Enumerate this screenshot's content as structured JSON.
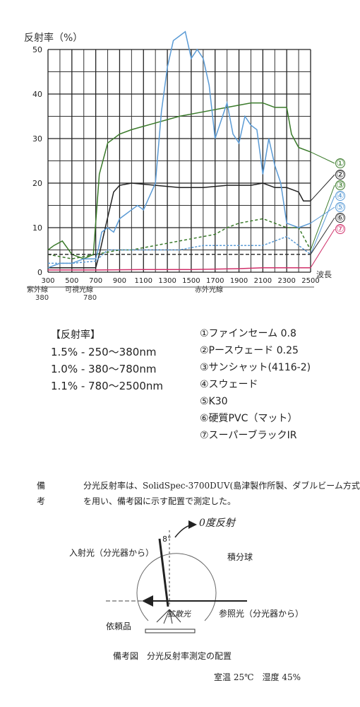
{
  "chart_data": {
    "type": "line",
    "ylabel": "反射率（%）",
    "xlabel": "波長",
    "xlim": [
      300,
      2500
    ],
    "ylim": [
      0,
      50
    ],
    "x_ticks": [
      "300",
      "500",
      "700",
      "900",
      "1100",
      "1300",
      "1500",
      "1700",
      "1900",
      "2100",
      "2300",
      "2500"
    ],
    "y_ticks": [
      "0",
      "10",
      "20",
      "30",
      "40",
      "50"
    ],
    "region_labels": {
      "uv": "紫外線",
      "visible": "可視光線",
      "ir": "赤外光線",
      "b1": "380",
      "b2": "780"
    },
    "series": [
      {
        "name": "①",
        "color": "#3a7a2a",
        "x": [
          300,
          350,
          420,
          500,
          600,
          680,
          730,
          800,
          900,
          1000,
          1200,
          1400,
          1600,
          1800,
          2000,
          2100,
          2200,
          2300,
          2340,
          2400,
          2500
        ],
        "y": [
          5,
          6,
          7,
          4,
          3,
          4,
          22,
          29,
          31,
          32,
          33.5,
          35,
          36,
          37,
          38,
          38,
          37,
          37,
          31,
          28,
          27
        ]
      },
      {
        "name": "②",
        "color": "#222222",
        "x": [
          300,
          400,
          500,
          600,
          700,
          730,
          780,
          850,
          900,
          1000,
          1200,
          1400,
          1600,
          1800,
          2000,
          2100,
          2200,
          2300,
          2400,
          2440,
          2500
        ],
        "y": [
          1,
          1,
          1,
          1,
          1,
          4,
          10,
          18,
          19.5,
          20,
          19.5,
          19,
          19,
          19.5,
          19.5,
          20,
          19,
          19,
          18,
          16,
          16
        ]
      },
      {
        "name": "③",
        "color": "#3a7a2a",
        "x": [
          300,
          500,
          700,
          800,
          900,
          1000,
          1100,
          1200,
          1300,
          1400,
          1500,
          1600,
          1700,
          1800,
          1900,
          2000,
          2100,
          2200,
          2300,
          2400,
          2500
        ],
        "y": [
          4,
          3,
          4,
          4.5,
          5,
          5,
          5.5,
          6,
          6.5,
          7,
          7.5,
          8,
          8.5,
          10,
          11,
          11.5,
          12,
          11,
          10,
          10,
          5
        ]
      },
      {
        "name": "④",
        "color": "#5b9bd5",
        "x": [
          300,
          500,
          700,
          800,
          900,
          1000,
          1100,
          1200,
          1300,
          1400,
          1500,
          1600,
          1700,
          1800,
          1900,
          2000,
          2100,
          2200,
          2300,
          2400,
          2500
        ],
        "y": [
          2,
          2,
          2.5,
          5,
          5,
          5,
          5,
          5,
          5,
          5,
          5.5,
          6,
          6,
          6,
          6,
          6,
          6,
          7,
          8,
          6,
          4
        ]
      },
      {
        "name": "⑤",
        "color": "#5b9bd5",
        "x": [
          300,
          400,
          500,
          600,
          700,
          720,
          750,
          800,
          850,
          900,
          950,
          1000,
          1050,
          1100,
          1200,
          1250,
          1300,
          1350,
          1400,
          1450,
          1500,
          1550,
          1600,
          1650,
          1700,
          1750,
          1800,
          1850,
          1900,
          1950,
          2000,
          2050,
          2100,
          2150,
          2200,
          2250,
          2300,
          2400,
          2500
        ],
        "y": [
          1,
          2,
          2,
          3,
          3,
          5,
          9,
          10,
          9,
          12,
          13,
          14,
          15,
          14,
          20,
          36,
          46,
          52,
          53,
          54,
          48,
          50,
          48,
          42,
          30,
          34,
          38,
          31,
          29,
          35,
          33,
          32,
          22,
          30,
          24,
          20,
          11,
          10,
          11
        ]
      },
      {
        "name": "⑥",
        "color": "#333333",
        "x": [
          300,
          500,
          700,
          900,
          1100,
          1300,
          1500,
          1700,
          1900,
          2100,
          2300,
          2500
        ],
        "y": [
          4,
          4,
          4,
          4,
          4,
          4,
          4,
          4,
          4,
          4,
          4,
          4
        ]
      },
      {
        "name": "⑦",
        "color": "#d0306a",
        "x": [
          300,
          700,
          1100,
          1500,
          1900,
          2100,
          2300,
          2500
        ],
        "y": [
          0.5,
          0.5,
          0.6,
          0.6,
          0.8,
          1,
          1,
          1
        ]
      }
    ]
  },
  "reflectance": {
    "title": "【反射率】",
    "rows": [
      "1.5% - 250～380nm",
      "1.0% - 380～780nm",
      "1.1% - 780～2500nm"
    ]
  },
  "legend": [
    "①ファインセーム 0.8",
    "②Pースウェード 0.25",
    "③サンシャット(4116-2)",
    "④スウェード",
    "⑤K30",
    "⑥硬質PVC（マット）",
    "⑦スーパーブラックIR"
  ],
  "note": {
    "label": "備考",
    "text": "分光反射率は、SolidSpec-3700DUV(島津製作所製、ダブルビーム方式)を用い、備考図に示す配置で測定した。"
  },
  "diagram": {
    "angle": "8°",
    "handwritten": "0度反射",
    "incident": "入射光（分光器から）",
    "sphere": "積分球",
    "reference": "参照光（分光器から）",
    "diffuse": "拡散光",
    "sample": "依頼品",
    "caption": "備考図　分光反射率測定の配置",
    "conditions": "室温 25℃　湿度 45%"
  }
}
